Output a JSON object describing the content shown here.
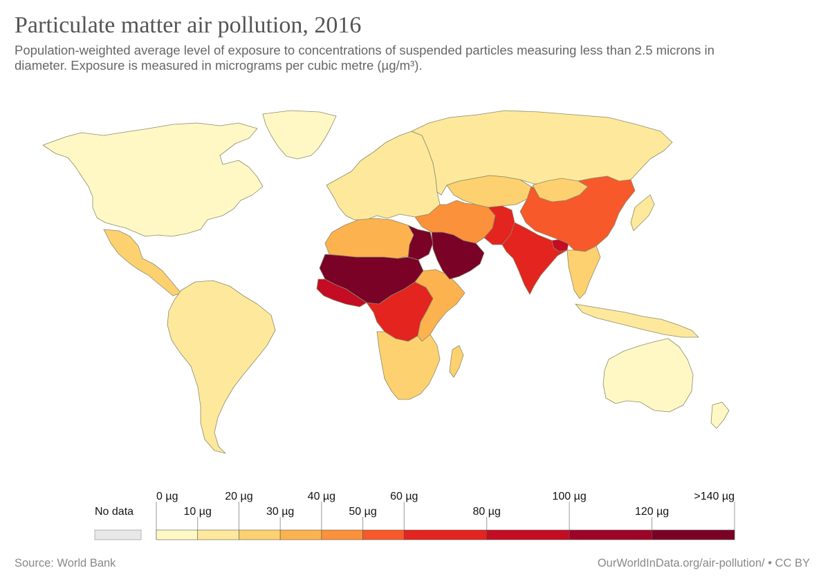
{
  "title": "Particulate matter air pollution, 2016",
  "subtitle": "Population-weighted average level of exposure to concentrations of suspended particles measuring less than 2.5 microns in diameter. Exposure is measured in micrograms per cubic metre (µg/m³).",
  "source": "Source: World Bank",
  "credit": "OurWorldInData.org/air-pollution/ • CC BY",
  "legend": {
    "no_data_label": "No data",
    "no_data_color": "#e8e8e8",
    "bins": [
      {
        "from": 0,
        "to": 10,
        "color": "#fff8c4"
      },
      {
        "from": 10,
        "to": 20,
        "color": "#fde89c"
      },
      {
        "from": 20,
        "to": 30,
        "color": "#fdd170"
      },
      {
        "from": 30,
        "to": 40,
        "color": "#fcb24e"
      },
      {
        "from": 40,
        "to": 50,
        "color": "#fb913a"
      },
      {
        "from": 50,
        "to": 60,
        "color": "#f7592b"
      },
      {
        "from": 60,
        "to": 80,
        "color": "#e3241f"
      },
      {
        "from": 80,
        "to": 100,
        "color": "#c40c24"
      },
      {
        "from": 100,
        "to": 120,
        "color": "#9e0428"
      },
      {
        "from": 120,
        "to": 140,
        "color": "#7a0226"
      }
    ],
    "tick_labels": [
      {
        "value": 0,
        "label": "0 µg",
        "row": "top"
      },
      {
        "value": 10,
        "label": "10 µg",
        "row": "bottom"
      },
      {
        "value": 20,
        "label": "20 µg",
        "row": "top"
      },
      {
        "value": 30,
        "label": "30 µg",
        "row": "bottom"
      },
      {
        "value": 40,
        "label": "40 µg",
        "row": "top"
      },
      {
        "value": 50,
        "label": "50 µg",
        "row": "bottom"
      },
      {
        "value": 60,
        "label": "60 µg",
        "row": "top"
      },
      {
        "value": 80,
        "label": "80 µg",
        "row": "bottom"
      },
      {
        "value": 100,
        "label": "100 µg",
        "row": "top"
      },
      {
        "value": 120,
        "label": "120 µg",
        "row": "bottom"
      },
      {
        "value": 140,
        "label": ">140 µg",
        "row": "top"
      }
    ]
  },
  "map": {
    "colors": {
      "ocean": "#ffffff",
      "border": "#8a8a6a"
    },
    "regions": [
      {
        "name": "North America",
        "value": 8
      },
      {
        "name": "Greenland",
        "value": 5
      },
      {
        "name": "Central America",
        "value": 20
      },
      {
        "name": "South America",
        "value": 17
      },
      {
        "name": "Europe",
        "value": 14
      },
      {
        "name": "Russia",
        "value": 15
      },
      {
        "name": "Central Asia",
        "value": 25
      },
      {
        "name": "North Africa",
        "value": 38
      },
      {
        "name": "Sahel",
        "value": 130
      },
      {
        "name": "West Africa",
        "value": 92
      },
      {
        "name": "Central Africa",
        "value": 62
      },
      {
        "name": "East Africa",
        "value": 36
      },
      {
        "name": "Southern Africa",
        "value": 26
      },
      {
        "name": "Madagascar",
        "value": 22
      },
      {
        "name": "Middle East",
        "value": 48
      },
      {
        "name": "Arabian Peninsula",
        "value": 132
      },
      {
        "name": "Egypt",
        "value": 122
      },
      {
        "name": "Pakistan",
        "value": 72
      },
      {
        "name": "India",
        "value": 68
      },
      {
        "name": "Bangladesh",
        "value": 92
      },
      {
        "name": "China",
        "value": 55
      },
      {
        "name": "Mongolia",
        "value": 26
      },
      {
        "name": "Southeast Asia",
        "value": 28
      },
      {
        "name": "Indonesia",
        "value": 15
      },
      {
        "name": "Japan",
        "value": 12
      },
      {
        "name": "Australia",
        "value": 8
      },
      {
        "name": "New Zealand",
        "value": 6
      }
    ]
  }
}
